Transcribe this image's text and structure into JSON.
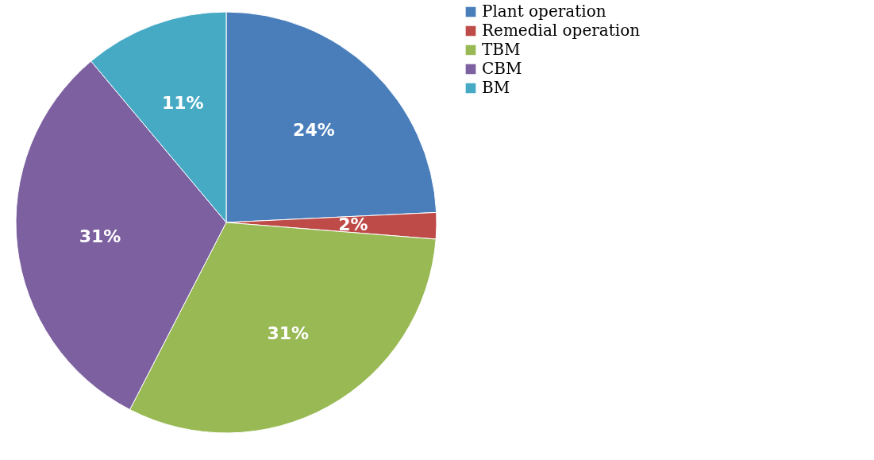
{
  "chart_data": {
    "type": "pie",
    "categories": [
      "Plant operation",
      "Remedial operation",
      "TBM",
      "CBM",
      "BM"
    ],
    "values": [
      24,
      2,
      31,
      31,
      11
    ],
    "colors": [
      "#4a7ebb",
      "#be4b48",
      "#98b954",
      "#7d60a0",
      "#46aac5"
    ],
    "value_labels": [
      "24%",
      "2%",
      "31%",
      "31%",
      "11%"
    ],
    "legend": "right"
  }
}
